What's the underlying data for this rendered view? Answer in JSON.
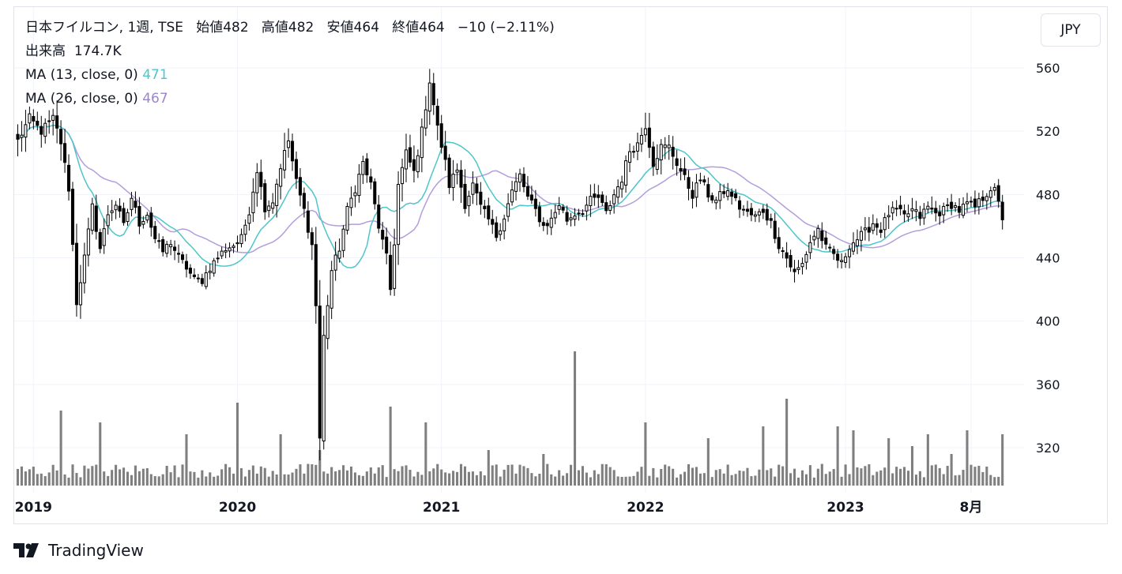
{
  "header": {
    "symbol_line": "日本フイルコン, 1週, TSE",
    "open_label": "始値",
    "open_value": "482",
    "high_label": "高値",
    "high_value": "482",
    "low_label": "安値",
    "low_value": "464",
    "close_label": "終値",
    "close_value": "464",
    "change": "−10 (−2.11%)",
    "volume_label": "出来高",
    "volume_value": "174.7K",
    "ma1_label": "MA (13, close, 0)",
    "ma1_value": "471",
    "ma2_label": "MA (26, close, 0)",
    "ma2_value": "467"
  },
  "currency_button": "JPY",
  "brand": "TradingView",
  "colors": {
    "ma1": "#4dc5c9",
    "ma2": "#b39ddb",
    "candle": "#000000",
    "volume": "#7f7f7f",
    "grid": "#f0f3fa"
  },
  "chart_data": {
    "type": "candlestick",
    "interval": "1週",
    "y_ticks": [
      560,
      520,
      480,
      440,
      400,
      360,
      320
    ],
    "ylim": [
      296,
      572
    ],
    "x_labels": [
      "2019",
      "2020",
      "2021",
      "2022",
      "2023",
      "8月"
    ],
    "x_label_weeks": [
      4,
      56,
      108,
      160,
      211,
      243
    ],
    "week_count": 257,
    "grid": true,
    "anchors": [
      [
        0,
        514,
        24
      ],
      [
        3,
        528,
        20
      ],
      [
        6,
        520,
        18
      ],
      [
        9,
        528,
        22
      ],
      [
        11,
        513,
        30
      ],
      [
        13,
        484,
        14
      ],
      [
        15,
        412,
        26
      ],
      [
        17,
        440,
        20
      ],
      [
        19,
        472,
        16
      ],
      [
        21,
        446,
        16
      ],
      [
        23,
        468,
        14
      ],
      [
        25,
        474,
        14
      ],
      [
        27,
        460,
        12
      ],
      [
        29,
        478,
        14
      ],
      [
        31,
        462,
        12
      ],
      [
        33,
        468,
        12
      ],
      [
        35,
        452,
        14
      ],
      [
        37,
        444,
        12
      ],
      [
        39,
        450,
        12
      ],
      [
        41,
        440,
        14
      ],
      [
        43,
        434,
        12
      ],
      [
        45,
        426,
        10
      ],
      [
        47,
        426,
        10
      ],
      [
        49,
        434,
        10
      ],
      [
        51,
        440,
        10
      ],
      [
        53,
        446,
        12
      ],
      [
        55,
        448,
        10
      ],
      [
        57,
        452,
        12
      ],
      [
        59,
        470,
        16
      ],
      [
        61,
        496,
        20
      ],
      [
        63,
        472,
        14
      ],
      [
        65,
        476,
        14
      ],
      [
        67,
        498,
        20
      ],
      [
        69,
        514,
        28
      ],
      [
        71,
        488,
        16
      ],
      [
        73,
        470,
        14
      ],
      [
        75,
        448,
        20
      ],
      [
        76,
        410,
        26
      ],
      [
        77,
        326,
        40
      ],
      [
        78,
        390,
        26
      ],
      [
        80,
        432,
        22
      ],
      [
        82,
        446,
        18
      ],
      [
        84,
        470,
        14
      ],
      [
        86,
        484,
        16
      ],
      [
        88,
        500,
        14
      ],
      [
        90,
        486,
        14
      ],
      [
        92,
        460,
        14
      ],
      [
        94,
        440,
        16
      ],
      [
        95,
        420,
        20
      ],
      [
        96,
        450,
        24
      ],
      [
        97,
        486,
        28
      ],
      [
        99,
        506,
        22
      ],
      [
        101,
        494,
        18
      ],
      [
        103,
        520,
        20
      ],
      [
        105,
        552,
        24
      ],
      [
        107,
        522,
        20
      ],
      [
        109,
        500,
        22
      ],
      [
        110,
        486,
        16
      ],
      [
        112,
        496,
        20
      ],
      [
        114,
        474,
        20
      ],
      [
        116,
        486,
        16
      ],
      [
        118,
        472,
        16
      ],
      [
        120,
        464,
        14
      ],
      [
        122,
        454,
        12
      ],
      [
        124,
        466,
        14
      ],
      [
        126,
        482,
        14
      ],
      [
        128,
        492,
        18
      ],
      [
        130,
        478,
        14
      ],
      [
        132,
        470,
        12
      ],
      [
        134,
        460,
        12
      ],
      [
        136,
        464,
        12
      ],
      [
        138,
        474,
        12
      ],
      [
        140,
        464,
        10
      ],
      [
        142,
        468,
        12
      ],
      [
        144,
        470,
        12
      ],
      [
        146,
        476,
        16
      ],
      [
        148,
        478,
        16
      ],
      [
        150,
        468,
        14
      ],
      [
        152,
        480,
        14
      ],
      [
        154,
        490,
        14
      ],
      [
        156,
        508,
        16
      ],
      [
        158,
        512,
        18
      ],
      [
        160,
        524,
        22
      ],
      [
        162,
        500,
        18
      ],
      [
        164,
        510,
        20
      ],
      [
        166,
        510,
        18
      ],
      [
        168,
        500,
        18
      ],
      [
        170,
        490,
        18
      ],
      [
        172,
        480,
        16
      ],
      [
        174,
        490,
        14
      ],
      [
        176,
        480,
        14
      ],
      [
        178,
        476,
        12
      ],
      [
        180,
        482,
        12
      ],
      [
        182,
        480,
        12
      ],
      [
        184,
        472,
        12
      ],
      [
        186,
        468,
        12
      ],
      [
        188,
        466,
        12
      ],
      [
        190,
        470,
        12
      ],
      [
        192,
        462,
        14
      ],
      [
        194,
        448,
        14
      ],
      [
        196,
        440,
        14
      ],
      [
        198,
        430,
        14
      ],
      [
        200,
        436,
        12
      ],
      [
        202,
        450,
        14
      ],
      [
        204,
        458,
        14
      ],
      [
        206,
        446,
        12
      ],
      [
        208,
        442,
        12
      ],
      [
        210,
        436,
        12
      ],
      [
        212,
        448,
        16
      ],
      [
        214,
        452,
        14
      ],
      [
        216,
        456,
        14
      ],
      [
        218,
        462,
        14
      ],
      [
        220,
        458,
        14
      ],
      [
        222,
        468,
        16
      ],
      [
        224,
        470,
        14
      ],
      [
        226,
        466,
        14
      ],
      [
        228,
        470,
        14
      ],
      [
        230,
        466,
        12
      ],
      [
        232,
        472,
        16
      ],
      [
        234,
        468,
        14
      ],
      [
        236,
        470,
        14
      ],
      [
        238,
        474,
        14
      ],
      [
        240,
        470,
        12
      ],
      [
        242,
        474,
        12
      ],
      [
        244,
        472,
        14
      ],
      [
        246,
        478,
        12
      ],
      [
        248,
        484,
        12
      ],
      [
        249,
        482,
        12
      ],
      [
        250,
        474,
        12
      ],
      [
        251,
        464,
        14
      ]
    ],
    "volume_spikes": [
      [
        11,
        95
      ],
      [
        21,
        80
      ],
      [
        43,
        65
      ],
      [
        56,
        105
      ],
      [
        67,
        65
      ],
      [
        77,
        45
      ],
      [
        95,
        100
      ],
      [
        104,
        80
      ],
      [
        120,
        45
      ],
      [
        134,
        40
      ],
      [
        142,
        170
      ],
      [
        160,
        80
      ],
      [
        176,
        60
      ],
      [
        190,
        75
      ],
      [
        196,
        110
      ],
      [
        209,
        75
      ],
      [
        213,
        70
      ],
      [
        222,
        60
      ],
      [
        228,
        50
      ],
      [
        232,
        65
      ],
      [
        238,
        40
      ],
      [
        242,
        70
      ],
      [
        251,
        65
      ]
    ]
  }
}
